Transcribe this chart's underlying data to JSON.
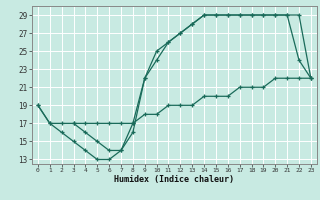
{
  "title": "",
  "xlabel": "Humidex (Indice chaleur)",
  "bg_color": "#c8eae2",
  "grid_color": "#ffffff",
  "line_color": "#1a6b5a",
  "xlim": [
    -0.5,
    23.5
  ],
  "ylim": [
    12.5,
    30.0
  ],
  "xticks": [
    0,
    1,
    2,
    3,
    4,
    5,
    6,
    7,
    8,
    9,
    10,
    11,
    12,
    13,
    14,
    15,
    16,
    17,
    18,
    19,
    20,
    21,
    22,
    23
  ],
  "yticks": [
    13,
    15,
    17,
    19,
    21,
    23,
    25,
    27,
    29
  ],
  "line1_x": [
    0,
    1,
    2,
    3,
    4,
    5,
    6,
    7,
    8,
    9,
    10,
    11,
    12,
    13,
    14,
    15,
    16,
    17,
    18,
    19,
    20,
    21,
    22,
    23
  ],
  "line1_y": [
    19,
    17,
    16,
    15,
    14,
    13,
    13,
    14,
    16,
    22,
    25,
    26,
    27,
    28,
    29,
    29,
    29,
    29,
    29,
    29,
    29,
    29,
    29,
    22
  ],
  "line2_x": [
    3,
    4,
    5,
    6,
    7,
    8,
    9,
    10,
    11,
    12,
    13,
    14,
    15,
    16,
    17,
    18,
    19,
    20,
    21,
    22,
    23
  ],
  "line2_y": [
    17,
    16,
    15,
    14,
    14,
    17,
    22,
    24,
    26,
    27,
    28,
    29,
    29,
    29,
    29,
    29,
    29,
    29,
    29,
    24,
    22
  ],
  "line3_x": [
    0,
    1,
    2,
    3,
    4,
    5,
    6,
    7,
    8,
    9,
    10,
    11,
    12,
    13,
    14,
    15,
    16,
    17,
    18,
    19,
    20,
    21,
    22,
    23
  ],
  "line3_y": [
    19,
    17,
    17,
    17,
    17,
    17,
    17,
    17,
    17,
    18,
    18,
    19,
    19,
    19,
    20,
    20,
    20,
    21,
    21,
    21,
    22,
    22,
    22,
    22
  ]
}
